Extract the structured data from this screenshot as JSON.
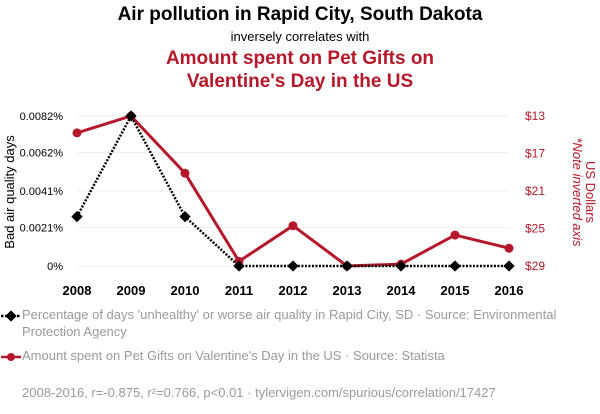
{
  "header": {
    "title": "Air pollution in Rapid City, South Dakota",
    "subtitle": "inversely correlates with",
    "title2": "Amount spent on Pet Gifts on Valentine's Day in the US"
  },
  "chart_data": {
    "type": "line",
    "categories": [
      "2008",
      "2009",
      "2010",
      "2011",
      "2012",
      "2013",
      "2014",
      "2015",
      "2016"
    ],
    "series": [
      {
        "name": "Percentage of days 'unhealthy' or worse air quality in Rapid City, SD",
        "axis": "left",
        "color": "#000000",
        "values": [
          0.0027,
          0.0082,
          0.0027,
          0.0,
          0.0,
          0.0,
          0.0,
          0.0,
          0.0
        ]
      },
      {
        "name": "Amount spent on Pet Gifts on Valentine's Day in the US",
        "axis": "right",
        "color": "#b5182a",
        "values": [
          14.8,
          13.0,
          19.1,
          28.5,
          24.7,
          29.0,
          28.8,
          25.7,
          27.1
        ]
      }
    ],
    "y_left": {
      "label": "Bad air quality days",
      "ylim": [
        0,
        0.0082
      ],
      "ticks": [
        0,
        0.0021,
        0.0041,
        0.0062,
        0.0082
      ],
      "tick_labels": [
        "0%",
        "0.0021%",
        "0.0041%",
        "0.0062%",
        "0.0082%"
      ]
    },
    "y_right": {
      "label": "US Dollars",
      "note": "*Note inverted axis",
      "ylim": [
        13,
        29
      ],
      "inverted": true,
      "ticks": [
        13,
        17,
        21,
        25,
        29
      ],
      "tick_labels": [
        "$13",
        "$17",
        "$21",
        "$25",
        "$29"
      ]
    },
    "legend": [
      {
        "text": "Percentage of days 'unhealthy' or worse air quality in Rapid City, SD · Source: Environmental Protection Agency"
      },
      {
        "text": "Amount spent on Pet Gifts on Valentine's Day in the US · Source: Statista"
      }
    ]
  },
  "footer": {
    "text": "2008-2016, r=-0.875, r²=0.766, p<0.01 · tylervigen.com/spurious/correlation/17427"
  }
}
